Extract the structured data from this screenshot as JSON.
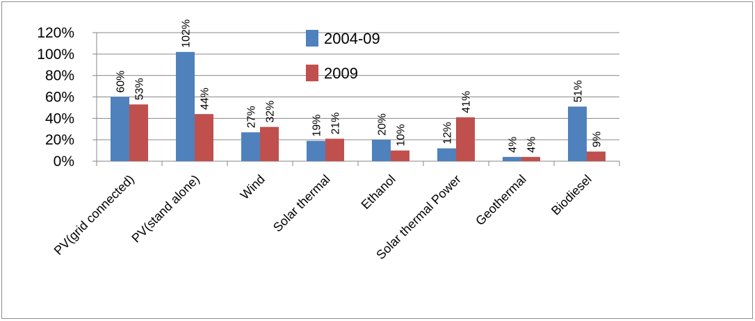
{
  "chart_data": {
    "type": "bar",
    "categories": [
      "PV(grid connected)",
      "PV(stand alone)",
      "Wind",
      "Solar thermal",
      "Ethanol",
      "Solar thermal Power",
      "Geothermal",
      "Biodiesel"
    ],
    "series": [
      {
        "name": "2004-09",
        "values": [
          60,
          102,
          27,
          19,
          20,
          12,
          4,
          51
        ],
        "labels": [
          "60%",
          "102%",
          "27%",
          "19%",
          "20%",
          "12%",
          "4%",
          "51%"
        ],
        "color": "#4f81bd"
      },
      {
        "name": "2009",
        "values": [
          53,
          44,
          32,
          21,
          10,
          41,
          4,
          9
        ],
        "labels": [
          "53%",
          "44%",
          "32%",
          "21%",
          "10%",
          "41%",
          "4%",
          "9%"
        ],
        "color": "#c0504d"
      }
    ],
    "y_ticks": [
      0,
      20,
      40,
      60,
      80,
      100,
      120
    ],
    "y_tick_labels": [
      "0%",
      "20%",
      "40%",
      "60%",
      "80%",
      "100%",
      "120%"
    ],
    "ylim": [
      0,
      120
    ],
    "grid": true,
    "legend_position": "top-center"
  }
}
